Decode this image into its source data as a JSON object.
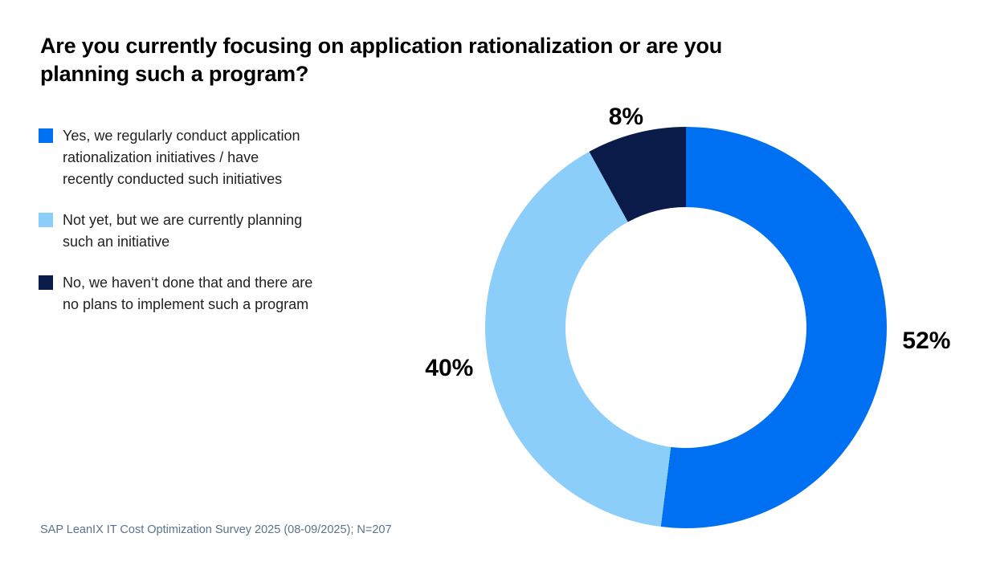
{
  "header": {
    "title": "Are you currently focusing on application rationalization or are you\nplanning such a program?"
  },
  "chart_data": {
    "type": "pie",
    "subtype": "donut",
    "title": "Are you currently focusing on application rationalization or are you planning such a program?",
    "units": "percent",
    "start_angle_deg": 0,
    "direction": "clockwise",
    "inner_radius_ratio": 0.6,
    "legend_position": "left",
    "segments": [
      {
        "label": "Yes, we regularly conduct application\nrationalization initiatives / have\nrecently conducted such initiatives",
        "value": 52,
        "value_label": "52%",
        "color": "#0070F2"
      },
      {
        "label": "Not yet, but we are currently planning\nsuch an initiative",
        "value": 40,
        "value_label": "40%",
        "color": "#8CCEFA"
      },
      {
        "label": "No, we haven‘t done that and there are\nno plans to implement such a program",
        "value": 8,
        "value_label": "8%",
        "color": "#0A1B4A"
      }
    ]
  },
  "footer": {
    "source": "SAP LeanIX IT Cost Optimization Survey 2025 (08-09/2025); N=207"
  }
}
